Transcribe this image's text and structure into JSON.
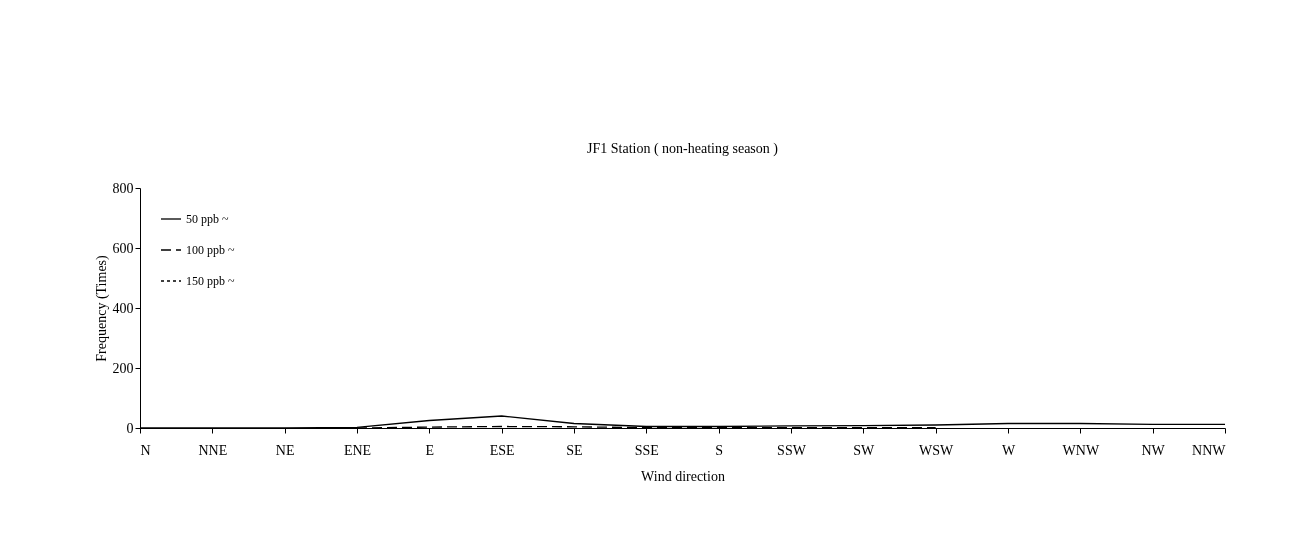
{
  "chart_data": {
    "type": "line",
    "title": "JF1 Station ( non-heating season )",
    "xlabel": "Wind direction",
    "ylabel": "Frequency (Times)",
    "categories": [
      "N",
      "NNE",
      "NE",
      "ENE",
      "E",
      "ESE",
      "SE",
      "SSE",
      "S",
      "SSW",
      "SW",
      "WSW",
      "W",
      "WNW",
      "NW",
      "NNW"
    ],
    "series": [
      {
        "name": "50 ppb ~",
        "color": "#000000",
        "line_style": "solid",
        "values": [
          0,
          0,
          0,
          2,
          25,
          40,
          15,
          5,
          5,
          7,
          8,
          10,
          15,
          15,
          12,
          12
        ]
      },
      {
        "name": "100 ppb ~",
        "color": "#000000",
        "line_style": "dashed",
        "values": [
          null,
          null,
          null,
          0,
          3,
          5,
          4,
          1,
          1,
          1,
          1,
          1,
          null,
          null,
          null,
          null
        ]
      },
      {
        "name": "150 ppb ~",
        "color": "#000000",
        "line_style": "dotted",
        "values": [
          null,
          null,
          null,
          null,
          null,
          null,
          null,
          null,
          null,
          null,
          null,
          null,
          null,
          null,
          null,
          null
        ]
      }
    ],
    "ylim": [
      0,
      800
    ],
    "yticks": [
      0,
      200,
      400,
      600,
      800
    ],
    "grid": false,
    "legend": "top left",
    "marker": "none"
  }
}
